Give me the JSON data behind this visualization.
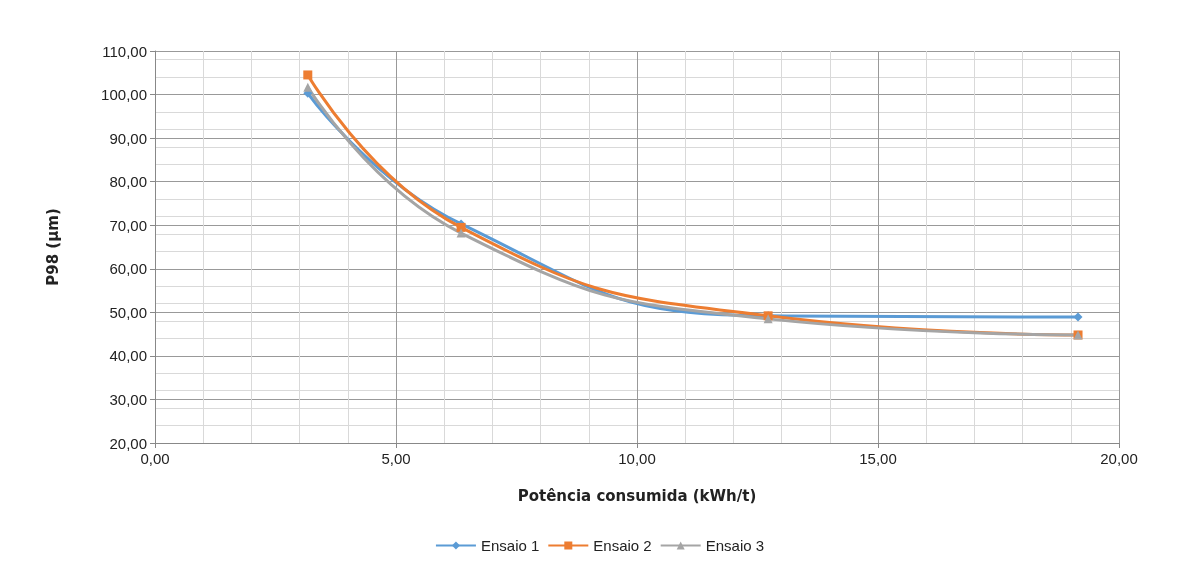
{
  "chart_data": {
    "type": "line",
    "xlabel": "Potência consumida (kWh/t)",
    "ylabel": "P98 (µm)",
    "series": [
      {
        "name": "Ensaio 1",
        "color": "#5b9bd5",
        "marker": "diamond",
        "x": [
          3.17,
          6.35,
          12.72,
          19.15
        ],
        "values": [
          100.3,
          70.3,
          49.2,
          48.9
        ]
      },
      {
        "name": "Ensaio 2",
        "color": "#ed7d31",
        "marker": "square",
        "x": [
          3.17,
          6.35,
          12.72,
          19.15
        ],
        "values": [
          104.5,
          69.5,
          49.2,
          44.8
        ]
      },
      {
        "name": "Ensaio 3",
        "color": "#a5a5a5",
        "marker": "triangle",
        "x": [
          3.17,
          6.35,
          12.72,
          19.15
        ],
        "values": [
          101.7,
          68.2,
          48.5,
          44.8
        ]
      }
    ],
    "xlim": [
      0,
      20
    ],
    "xticks": [
      {
        "value": 0,
        "label": "0,00"
      },
      {
        "value": 5,
        "label": "5,00"
      },
      {
        "value": 10,
        "label": "10,00"
      },
      {
        "value": 15,
        "label": "15,00"
      },
      {
        "value": 20,
        "label": "20,00"
      }
    ],
    "ylim": [
      20,
      110
    ],
    "yticks": [
      {
        "value": 20,
        "label": "20,00"
      },
      {
        "value": 30,
        "label": "30,00"
      },
      {
        "value": 40,
        "label": "40,00"
      },
      {
        "value": 50,
        "label": "50,00"
      },
      {
        "value": 60,
        "label": "60,00"
      },
      {
        "value": 70,
        "label": "70,00"
      },
      {
        "value": 80,
        "label": "80,00"
      },
      {
        "value": 90,
        "label": "90,00"
      },
      {
        "value": 100,
        "label": "100,00"
      },
      {
        "value": 110,
        "label": "110,00"
      }
    ],
    "grid": true,
    "legend": "bottom",
    "line_style": "solid"
  }
}
